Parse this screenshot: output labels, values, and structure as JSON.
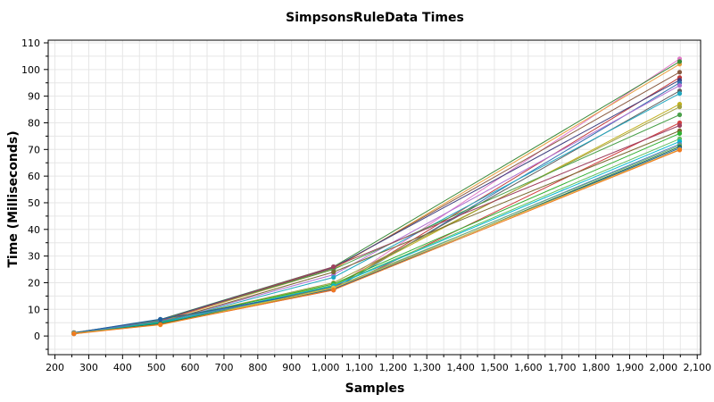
{
  "chart_data": {
    "type": "line",
    "title": "SimpsonsRuleData Times",
    "xlabel": "Samples",
    "ylabel": "Time (Milliseconds)",
    "xlim": [
      180,
      2110
    ],
    "ylim": [
      -7,
      111
    ],
    "x_ticks": [
      "200",
      "300",
      "400",
      "500",
      "600",
      "700",
      "800",
      "900",
      "1,000",
      "1,100",
      "1,200",
      "1,300",
      "1,400",
      "1,500",
      "1,600",
      "1,700",
      "1,800",
      "1,900",
      "2,000",
      "2,100"
    ],
    "x_tick_values": [
      200,
      300,
      400,
      500,
      600,
      700,
      800,
      900,
      1000,
      1100,
      1200,
      1300,
      1400,
      1500,
      1600,
      1700,
      1800,
      1900,
      2000,
      2100
    ],
    "y_ticks": [
      "0",
      "10",
      "20",
      "30",
      "40",
      "50",
      "60",
      "70",
      "80",
      "90",
      "100",
      "110"
    ],
    "y_tick_values": [
      0,
      10,
      20,
      30,
      40,
      50,
      60,
      70,
      80,
      90,
      100,
      110
    ],
    "grid": true,
    "legend": "none",
    "x": [
      256,
      512,
      1024,
      2048
    ],
    "series": [
      {
        "color": "#e07ac8",
        "values": [
          1.2,
          6.0,
          18.0,
          104.0
        ]
      },
      {
        "color": "#e8a040",
        "values": [
          1.0,
          5.5,
          25.0,
          102.0
        ]
      },
      {
        "color": "#3a8a3a",
        "values": [
          1.1,
          6.2,
          26.0,
          103.0
        ]
      },
      {
        "color": "#8a5a40",
        "values": [
          0.9,
          5.8,
          25.5,
          99.0
        ]
      },
      {
        "color": "#c03a3a",
        "values": [
          1.0,
          4.5,
          18.0,
          97.0
        ]
      },
      {
        "color": "#404080",
        "values": [
          1.2,
          6.1,
          25.8,
          96.0
        ]
      },
      {
        "color": "#2f6fb0",
        "values": [
          1.1,
          6.0,
          17.5,
          95.0
        ]
      },
      {
        "color": "#b070d0",
        "values": [
          1.0,
          5.2,
          23.0,
          94.0
        ]
      },
      {
        "color": "#606060",
        "values": [
          0.8,
          4.8,
          18.5,
          92.0
        ]
      },
      {
        "color": "#20a8c0",
        "values": [
          1.0,
          5.0,
          22.0,
          91.0
        ]
      },
      {
        "color": "#c0b020",
        "values": [
          1.3,
          5.9,
          19.0,
          87.0
        ]
      },
      {
        "color": "#a0a040",
        "values": [
          1.1,
          5.4,
          20.0,
          86.0
        ]
      },
      {
        "color": "#4aa04a",
        "values": [
          1.0,
          6.0,
          25.0,
          83.0
        ]
      },
      {
        "color": "#d04040",
        "values": [
          0.9,
          4.4,
          17.2,
          80.0
        ]
      },
      {
        "color": "#a04060",
        "values": [
          1.2,
          5.7,
          26.0,
          79.0
        ]
      },
      {
        "color": "#7a6a30",
        "values": [
          1.0,
          5.1,
          24.0,
          77.0
        ]
      },
      {
        "color": "#30b030",
        "values": [
          1.1,
          5.3,
          19.5,
          76.0
        ]
      },
      {
        "color": "#60c060",
        "values": [
          0.9,
          4.9,
          19.0,
          74.0
        ]
      },
      {
        "color": "#00b8d0",
        "values": [
          1.0,
          5.0,
          18.8,
          73.0
        ]
      },
      {
        "color": "#5080c0",
        "values": [
          1.1,
          5.6,
          17.8,
          72.0
        ]
      },
      {
        "color": "#70b070",
        "values": [
          1.0,
          4.6,
          18.2,
          71.5
        ]
      },
      {
        "color": "#2a7a4a",
        "values": [
          0.9,
          4.7,
          17.4,
          71.0
        ]
      },
      {
        "color": "#1f5fa0",
        "values": [
          1.2,
          6.3,
          17.6,
          70.5
        ]
      },
      {
        "color": "#e0c040",
        "values": [
          1.0,
          4.2,
          18.0,
          70.0
        ]
      },
      {
        "color": "#f07a20",
        "values": [
          0.8,
          4.3,
          17.3,
          69.8
        ]
      }
    ]
  }
}
